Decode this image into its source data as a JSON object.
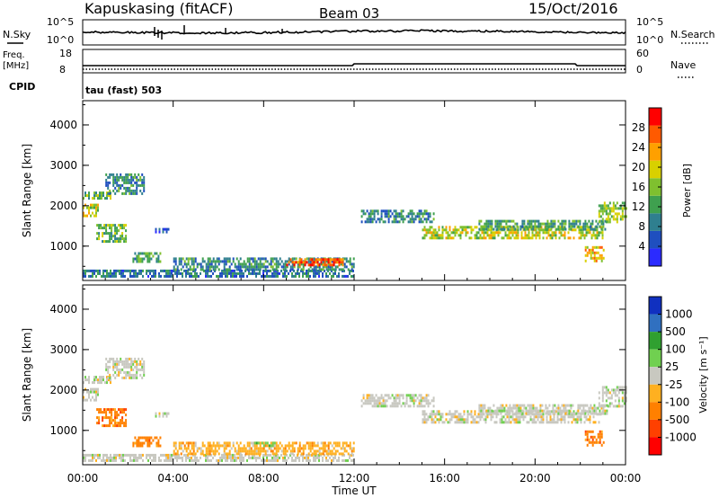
{
  "header": {
    "site": "Kapuskasing (fitACF)",
    "beam": "Beam 03",
    "date": "15/Oct/2016"
  },
  "top_panel": {
    "nsky_label": "N.Sky",
    "nsky_ticks": [
      "10^5",
      "10^0"
    ],
    "nsearch_label": "N.Search",
    "nsearch_ticks": [
      "10^5",
      "10^0"
    ],
    "freq_label": "Freq.",
    "freq_unit": "[MHz]",
    "freq_ticks": [
      "18",
      "8"
    ],
    "nave_label": "Nave",
    "nave_ticks": [
      "60",
      "0"
    ],
    "cpid_label": "CPID",
    "cpid_value": "tau (fast) 503"
  },
  "chart_data": [
    {
      "type": "heatmap",
      "name": "power",
      "xlabel": "Time UT",
      "ylabel": "Slant Range [km]",
      "xlim": [
        0,
        24
      ],
      "ylim": [
        150,
        4600
      ],
      "x_ticks": [
        "00:00",
        "04:00",
        "08:00",
        "12:00",
        "16:00",
        "20:00",
        "00:00"
      ],
      "x_tick_values": [
        0,
        4,
        8,
        12,
        16,
        20,
        24
      ],
      "y_ticks": [
        "1000",
        "2000",
        "3000",
        "4000"
      ],
      "y_tick_values": [
        1000,
        2000,
        3000,
        4000
      ],
      "colorbar": {
        "label": "Power [dB]",
        "range": [
          0,
          32
        ],
        "tick_labels": [
          "4",
          "8",
          "12",
          "16",
          "20",
          "24",
          "28"
        ],
        "tick_values": [
          4,
          8,
          12,
          16,
          20,
          24,
          28
        ],
        "colors": [
          "#2b2bff",
          "#1f4fbf",
          "#2f7f8f",
          "#3fa04f",
          "#7fc02f",
          "#d8d000",
          "#ffa000",
          "#ff5a00",
          "#ff0000"
        ]
      },
      "regions": [
        {
          "t0": 0.0,
          "t1": 1.2,
          "r0": 2150,
          "r1": 2350,
          "level": 14
        },
        {
          "t0": 1.0,
          "t1": 2.7,
          "r0": 2300,
          "r1": 2800,
          "level": 10
        },
        {
          "t0": 0.0,
          "t1": 0.7,
          "r0": 1750,
          "r1": 2050,
          "level": 18
        },
        {
          "t0": 0.6,
          "t1": 1.9,
          "r0": 1100,
          "r1": 1550,
          "level": 14
        },
        {
          "t0": 2.2,
          "t1": 3.4,
          "r0": 600,
          "r1": 850,
          "level": 12
        },
        {
          "t0": 3.2,
          "t1": 3.8,
          "r0": 1330,
          "r1": 1450,
          "level": 6
        },
        {
          "t0": 0.0,
          "t1": 12.0,
          "r0": 280,
          "r1": 420,
          "level": 8
        },
        {
          "t0": 4.0,
          "t1": 12.0,
          "r0": 420,
          "r1": 720,
          "level": 10
        },
        {
          "t0": 9.0,
          "t1": 11.5,
          "r0": 520,
          "r1": 700,
          "level": 26
        },
        {
          "t0": 12.3,
          "t1": 15.5,
          "r0": 1600,
          "r1": 1900,
          "level": 10
        },
        {
          "t0": 15.0,
          "t1": 23.0,
          "r0": 1200,
          "r1": 1500,
          "level": 18
        },
        {
          "t0": 17.5,
          "t1": 23.2,
          "r0": 1400,
          "r1": 1650,
          "level": 12
        },
        {
          "t0": 22.8,
          "t1": 24.0,
          "r0": 1600,
          "r1": 2100,
          "level": 16
        },
        {
          "t0": 22.2,
          "t1": 23.0,
          "r0": 600,
          "r1": 1000,
          "level": 22
        }
      ]
    },
    {
      "type": "heatmap",
      "name": "velocity",
      "xlabel": "Time UT",
      "ylabel": "Slant Range [km]",
      "xlim": [
        0,
        24
      ],
      "ylim": [
        150,
        4600
      ],
      "x_ticks": [
        "00:00",
        "04:00",
        "08:00",
        "12:00",
        "16:00",
        "20:00",
        "00:00"
      ],
      "x_tick_values": [
        0,
        4,
        8,
        12,
        16,
        20,
        24
      ],
      "y_ticks": [
        "1000",
        "2000",
        "3000",
        "4000"
      ],
      "y_tick_values": [
        1000,
        2000,
        3000,
        4000
      ],
      "colorbar": {
        "label": "Velocity [m s⁻¹]",
        "tick_labels": [
          "1000",
          "500",
          "100",
          "25",
          "-25",
          "-100",
          "-500",
          "-1000"
        ],
        "colors": [
          "#1030c0",
          "#3070c0",
          "#30a030",
          "#70d050",
          "#c8c8c0",
          "#ffb020",
          "#ff8000",
          "#ff4000",
          "#ff0000"
        ]
      },
      "regions": [
        {
          "t0": 0.0,
          "t1": 1.2,
          "r0": 2150,
          "r1": 2350,
          "cls": 4
        },
        {
          "t0": 1.0,
          "t1": 2.7,
          "r0": 2300,
          "r1": 2800,
          "cls": 4
        },
        {
          "t0": 0.0,
          "t1": 0.7,
          "r0": 1750,
          "r1": 2050,
          "cls": 4
        },
        {
          "t0": 0.6,
          "t1": 1.9,
          "r0": 1100,
          "r1": 1550,
          "cls": 6
        },
        {
          "t0": 2.2,
          "t1": 3.4,
          "r0": 600,
          "r1": 850,
          "cls": 6
        },
        {
          "t0": 3.2,
          "t1": 3.8,
          "r0": 1330,
          "r1": 1450,
          "cls": 4
        },
        {
          "t0": 0.0,
          "t1": 12.0,
          "r0": 280,
          "r1": 420,
          "cls": 4
        },
        {
          "t0": 4.0,
          "t1": 12.0,
          "r0": 420,
          "r1": 720,
          "cls": 5
        },
        {
          "t0": 7.5,
          "t1": 8.5,
          "r0": 600,
          "r1": 720,
          "cls": 3
        },
        {
          "t0": 12.3,
          "t1": 15.5,
          "r0": 1600,
          "r1": 1900,
          "cls": 4
        },
        {
          "t0": 15.0,
          "t1": 23.0,
          "r0": 1200,
          "r1": 1500,
          "cls": 4
        },
        {
          "t0": 17.5,
          "t1": 23.2,
          "r0": 1400,
          "r1": 1650,
          "cls": 4
        },
        {
          "t0": 22.8,
          "t1": 24.0,
          "r0": 1600,
          "r1": 2100,
          "cls": 4
        },
        {
          "t0": 22.2,
          "t1": 23.0,
          "r0": 600,
          "r1": 1000,
          "cls": 6
        }
      ]
    }
  ]
}
